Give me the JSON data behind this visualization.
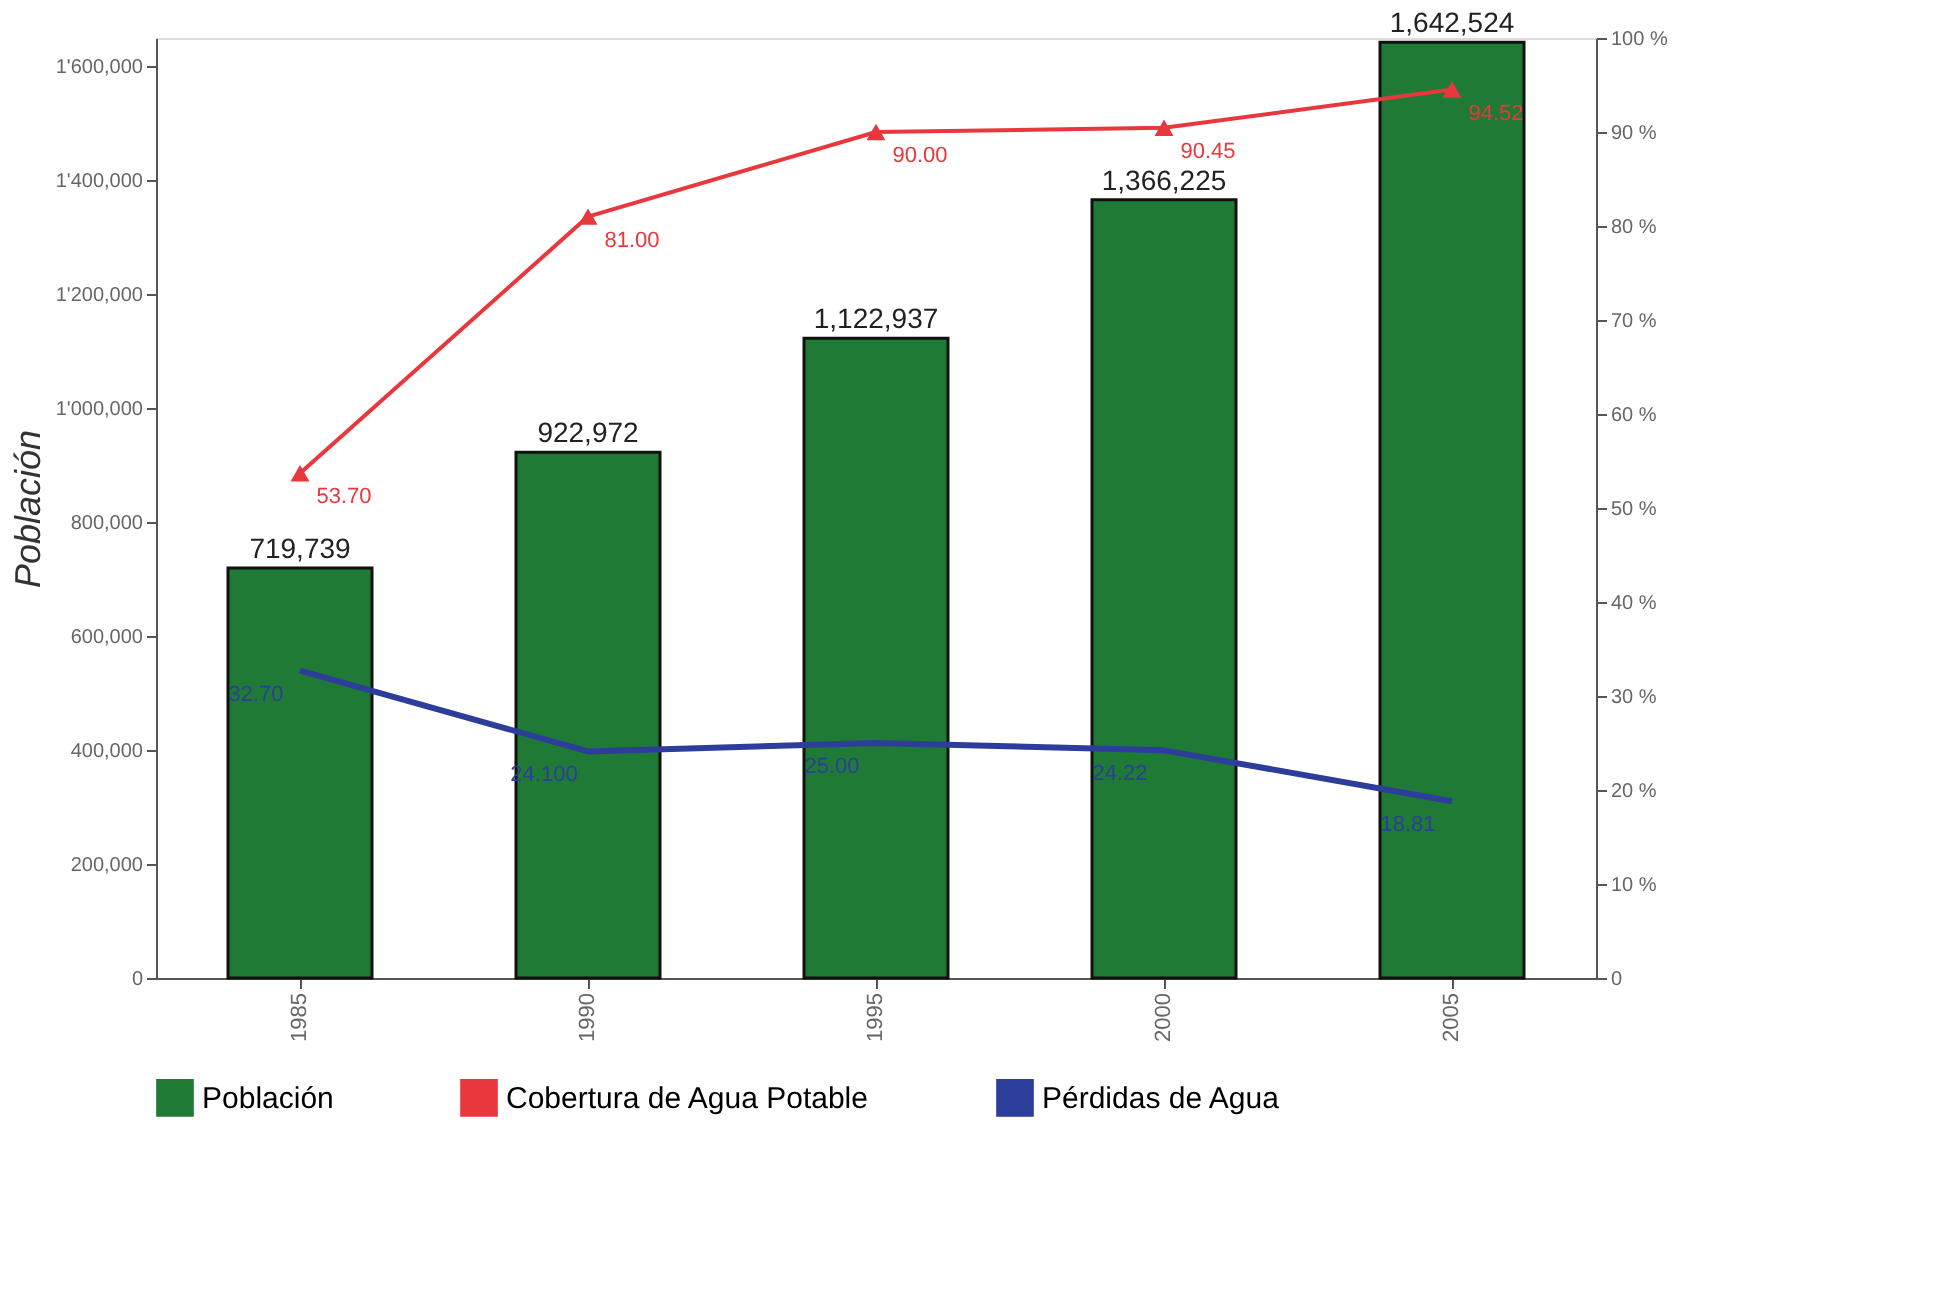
{
  "chart_data": {
    "type": "bar",
    "ylabel": "Población",
    "categories": [
      "1985",
      "1990",
      "1995",
      "2000",
      "2005"
    ],
    "series": [
      {
        "name": "Población",
        "color": "#1f7a35",
        "values": [
          719739,
          922972,
          1122937,
          1366225,
          1642524
        ],
        "value_labels": [
          "719,739",
          "922,972",
          "1,122,937",
          "1,366,225",
          "1,642,524"
        ]
      },
      {
        "name": "Cobertura de Agua Potable",
        "type": "line",
        "axis": "y2",
        "color": "#e8383d",
        "marker": "triangle",
        "values": [
          53.7,
          81.0,
          90.0,
          90.45,
          94.52
        ],
        "value_labels": [
          "53.70",
          "81.00",
          "90.00",
          "90.45",
          "94.52"
        ]
      },
      {
        "name": "Pérdidas de Agua",
        "type": "line",
        "axis": "y2",
        "color": "#2d3e9a",
        "marker": "none",
        "values": [
          32.7,
          24.1,
          25.0,
          24.22,
          18.81
        ],
        "value_labels": [
          "32.70",
          "24.100",
          "25.00",
          "24.22",
          "18.81"
        ]
      }
    ],
    "ylim": [
      0,
      1650000
    ],
    "yticks": [
      {
        "value": 0,
        "label": "0"
      },
      {
        "value": 200000,
        "label": "200,000"
      },
      {
        "value": 400000,
        "label": "400,000"
      },
      {
        "value": 600000,
        "label": "600,000"
      },
      {
        "value": 800000,
        "label": "800,000"
      },
      {
        "value": 1000000,
        "label": "1'000,000"
      },
      {
        "value": 1200000,
        "label": "1'200,000"
      },
      {
        "value": 1400000,
        "label": "1'400,000"
      },
      {
        "value": 1600000,
        "label": "1'600,000"
      }
    ],
    "y2lim": [
      0,
      100
    ],
    "y2ticks": [
      {
        "value": 0,
        "label": "0"
      },
      {
        "value": 10,
        "label": "10 %"
      },
      {
        "value": 20,
        "label": "20 %"
      },
      {
        "value": 30,
        "label": "30 %"
      },
      {
        "value": 40,
        "label": "40 %"
      },
      {
        "value": 50,
        "label": "50 %"
      },
      {
        "value": 60,
        "label": "60 %"
      },
      {
        "value": 70,
        "label": "70 %"
      },
      {
        "value": 80,
        "label": "80 %"
      },
      {
        "value": 90,
        "label": "90 %"
      },
      {
        "value": 100,
        "label": "100 %"
      }
    ],
    "grid": false,
    "legend": "bottom",
    "data_labels": true,
    "line_style": "solid"
  }
}
